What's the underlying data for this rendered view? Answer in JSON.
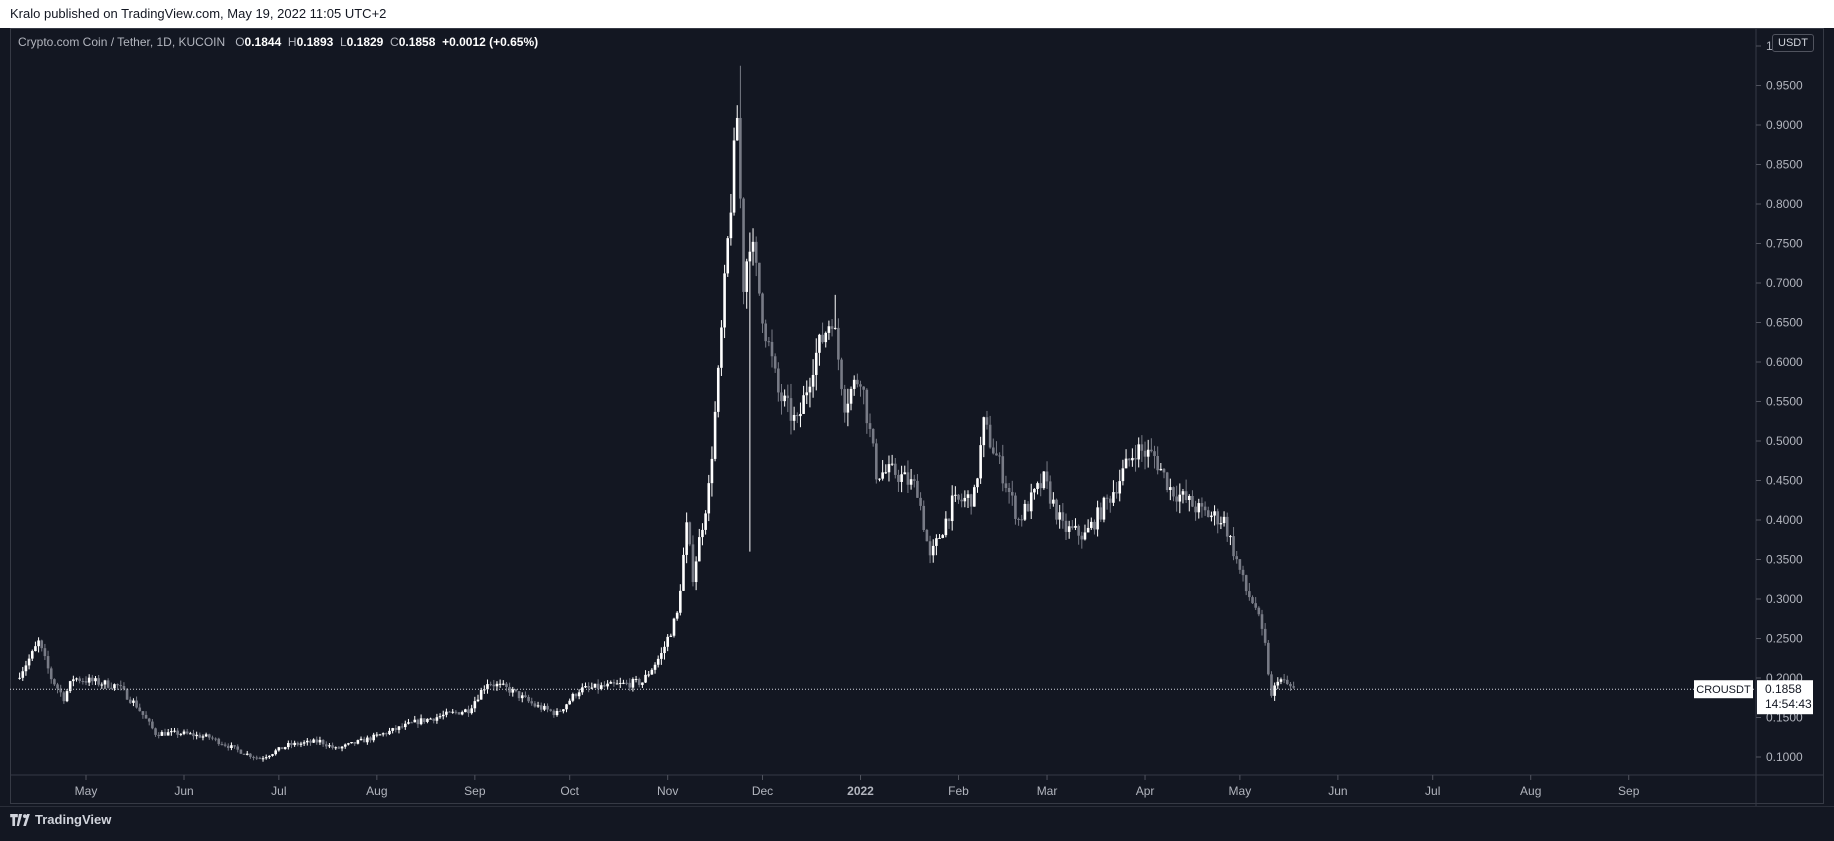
{
  "header": {
    "publish_text": "Kralo published on TradingView.com, May 19, 2022 11:05 UTC+2"
  },
  "legend": {
    "symbol": "Crypto.com Coin / Tether, 1D, KUCOIN",
    "o_label": "O",
    "o": "0.1844",
    "h_label": "H",
    "h": "0.1893",
    "l_label": "L",
    "l": "0.1829",
    "c_label": "C",
    "c": "0.1858",
    "change": "+0.0012 (+0.65%)"
  },
  "price_axis": {
    "unit": "USDT",
    "last_price_label": "CROUSDT",
    "last_price": "0.1858",
    "countdown": "14:54:43"
  },
  "footer": {
    "brand": "TradingView"
  },
  "colors": {
    "background": "#131722",
    "up": "#ffffff",
    "down": "#787b86",
    "axis_text": "#b2b5be",
    "price_line": "#d1d4dc"
  },
  "chart_data": {
    "type": "candlestick",
    "exchange": "KUCOIN",
    "interval": "1D",
    "y_ticks": [
      0.1,
      0.15,
      0.2,
      0.25,
      0.3,
      0.35,
      0.4,
      0.45,
      0.5,
      0.55,
      0.6,
      0.65,
      0.7,
      0.75,
      0.8,
      0.85,
      0.9,
      0.95,
      1.0
    ],
    "y_tick_labels": [
      "0.1000",
      "0.1500",
      "0.2000",
      "0.2500",
      "0.3000",
      "0.3500",
      "0.4000",
      "0.4500",
      "0.5000",
      "0.5500",
      "0.6000",
      "0.6500",
      "0.7000",
      "0.7500",
      "0.8000",
      "0.8500",
      "0.9000",
      "0.9500",
      "1.0000"
    ],
    "x_labels": [
      {
        "label": "May",
        "date": "2021-05-01"
      },
      {
        "label": "Jun",
        "date": "2021-06-01"
      },
      {
        "label": "Jul",
        "date": "2021-07-01"
      },
      {
        "label": "Aug",
        "date": "2021-08-01"
      },
      {
        "label": "Sep",
        "date": "2021-09-01"
      },
      {
        "label": "Oct",
        "date": "2021-10-01"
      },
      {
        "label": "Nov",
        "date": "2021-11-01"
      },
      {
        "label": "Dec",
        "date": "2021-12-01"
      },
      {
        "label": "2022",
        "date": "2022-01-01"
      },
      {
        "label": "Feb",
        "date": "2022-02-01"
      },
      {
        "label": "Mar",
        "date": "2022-03-01"
      },
      {
        "label": "Apr",
        "date": "2022-04-01"
      },
      {
        "label": "May",
        "date": "2022-05-01"
      },
      {
        "label": "Jun",
        "date": "2022-06-01"
      },
      {
        "label": "Jul",
        "date": "2022-07-01"
      },
      {
        "label": "Aug",
        "date": "2022-08-01"
      },
      {
        "label": "Sep",
        "date": "2022-09-01"
      }
    ],
    "last_close": 0.1858,
    "close_path": [
      {
        "date": "2021-04-10",
        "close": 0.2
      },
      {
        "date": "2021-04-15",
        "close": 0.23
      },
      {
        "date": "2021-04-17",
        "close": 0.245
      },
      {
        "date": "2021-04-21",
        "close": 0.2
      },
      {
        "date": "2021-04-25",
        "close": 0.175
      },
      {
        "date": "2021-04-28",
        "close": 0.2
      },
      {
        "date": "2021-05-05",
        "close": 0.195
      },
      {
        "date": "2021-05-12",
        "close": 0.19
      },
      {
        "date": "2021-05-18",
        "close": 0.165
      },
      {
        "date": "2021-05-24",
        "close": 0.13
      },
      {
        "date": "2021-06-01",
        "close": 0.13
      },
      {
        "date": "2021-06-10",
        "close": 0.125
      },
      {
        "date": "2021-06-21",
        "close": 0.105
      },
      {
        "date": "2021-06-26",
        "close": 0.098
      },
      {
        "date": "2021-07-05",
        "close": 0.115
      },
      {
        "date": "2021-07-15",
        "close": 0.12
      },
      {
        "date": "2021-07-20",
        "close": 0.11
      },
      {
        "date": "2021-08-01",
        "close": 0.125
      },
      {
        "date": "2021-08-15",
        "close": 0.145
      },
      {
        "date": "2021-08-31",
        "close": 0.16
      },
      {
        "date": "2021-09-06",
        "close": 0.195
      },
      {
        "date": "2021-09-13",
        "close": 0.185
      },
      {
        "date": "2021-09-21",
        "close": 0.165
      },
      {
        "date": "2021-09-28",
        "close": 0.155
      },
      {
        "date": "2021-10-05",
        "close": 0.185
      },
      {
        "date": "2021-10-15",
        "close": 0.19
      },
      {
        "date": "2021-10-25",
        "close": 0.195
      },
      {
        "date": "2021-10-31",
        "close": 0.23
      },
      {
        "date": "2021-11-05",
        "close": 0.28
      },
      {
        "date": "2021-11-08",
        "close": 0.39
      },
      {
        "date": "2021-11-10",
        "close": 0.33
      },
      {
        "date": "2021-11-15",
        "close": 0.44
      },
      {
        "date": "2021-11-18",
        "close": 0.58
      },
      {
        "date": "2021-11-21",
        "close": 0.75
      },
      {
        "date": "2021-11-24",
        "close": 0.91
      },
      {
        "date": "2021-11-26",
        "close": 0.7
      },
      {
        "date": "2021-11-28",
        "close": 0.76
      },
      {
        "date": "2021-12-03",
        "close": 0.64
      },
      {
        "date": "2021-12-07",
        "close": 0.56
      },
      {
        "date": "2021-12-13",
        "close": 0.52
      },
      {
        "date": "2021-12-18",
        "close": 0.6
      },
      {
        "date": "2021-12-24",
        "close": 0.66
      },
      {
        "date": "2021-12-28",
        "close": 0.55
      },
      {
        "date": "2022-01-02",
        "close": 0.585
      },
      {
        "date": "2022-01-07",
        "close": 0.46
      },
      {
        "date": "2022-01-13",
        "close": 0.46
      },
      {
        "date": "2022-01-20",
        "close": 0.44
      },
      {
        "date": "2022-01-24",
        "close": 0.35
      },
      {
        "date": "2022-01-31",
        "close": 0.42
      },
      {
        "date": "2022-02-07",
        "close": 0.43
      },
      {
        "date": "2022-02-10",
        "close": 0.52
      },
      {
        "date": "2022-02-15",
        "close": 0.47
      },
      {
        "date": "2022-02-21",
        "close": 0.4
      },
      {
        "date": "2022-03-01",
        "close": 0.45
      },
      {
        "date": "2022-03-07",
        "close": 0.39
      },
      {
        "date": "2022-03-14",
        "close": 0.38
      },
      {
        "date": "2022-03-22",
        "close": 0.43
      },
      {
        "date": "2022-03-30",
        "close": 0.49
      },
      {
        "date": "2022-04-05",
        "close": 0.48
      },
      {
        "date": "2022-04-10",
        "close": 0.44
      },
      {
        "date": "2022-04-20",
        "close": 0.41
      },
      {
        "date": "2022-04-27",
        "close": 0.4
      },
      {
        "date": "2022-05-04",
        "close": 0.31
      },
      {
        "date": "2022-05-07",
        "close": 0.29
      },
      {
        "date": "2022-05-10",
        "close": 0.24
      },
      {
        "date": "2022-05-12",
        "close": 0.175
      },
      {
        "date": "2022-05-14",
        "close": 0.2
      },
      {
        "date": "2022-05-19",
        "close": 0.1858
      }
    ]
  }
}
